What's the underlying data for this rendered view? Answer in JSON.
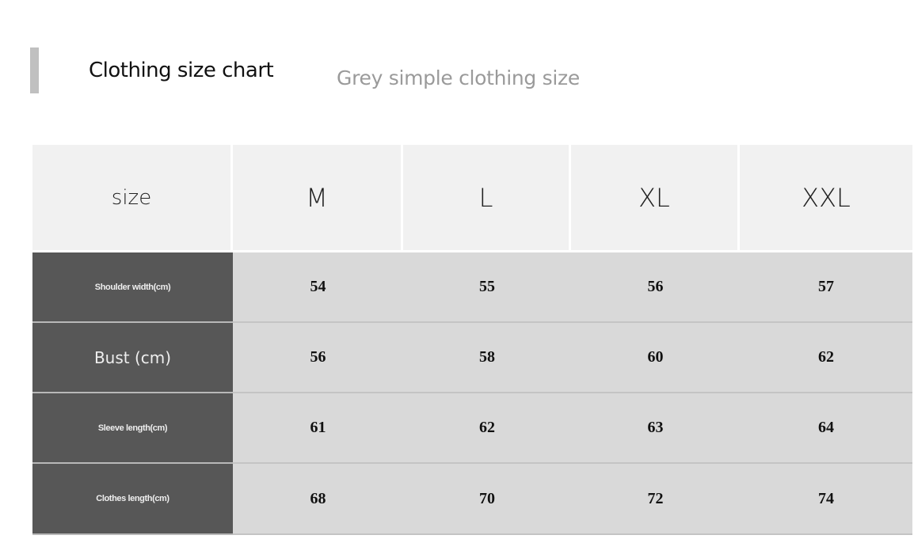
{
  "header": {
    "title": "Clothing size chart",
    "subtitle": "Grey simple clothing size",
    "accent_color": "#c0c0c0"
  },
  "table": {
    "corner_label": "size",
    "sizes": [
      "M",
      "L",
      "XL",
      "XXL"
    ],
    "rows": [
      {
        "label": "Shoulder width(cm)",
        "values": [
          "54",
          "55",
          "56",
          "57"
        ]
      },
      {
        "label": "Bust (cm)",
        "values": [
          "56",
          "58",
          "60",
          "62"
        ]
      },
      {
        "label": "Sleeve length(cm)",
        "values": [
          "61",
          "62",
          "63",
          "64"
        ]
      },
      {
        "label": "Clothes length(cm)",
        "values": [
          "68",
          "70",
          "72",
          "74"
        ]
      }
    ],
    "colors": {
      "label_bg": "#575757",
      "value_bg": "#d9d9d9",
      "header_bg": "#f1f1f1"
    }
  }
}
